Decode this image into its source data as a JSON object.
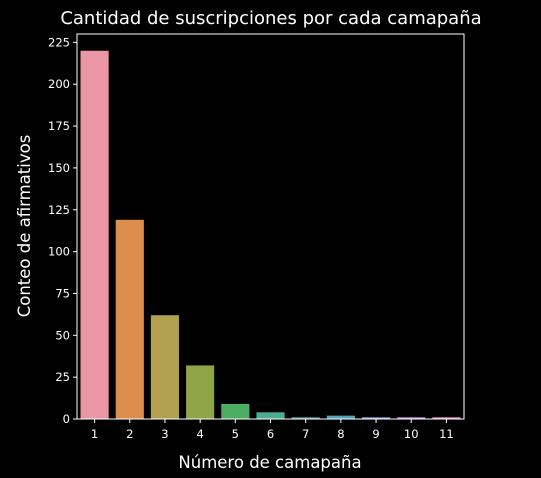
{
  "chart_data": {
    "type": "bar",
    "title": "Cantidad de suscripciones por cada camapaña",
    "xlabel": "Número de camapaña",
    "ylabel": "Conteo de afirmativos",
    "categories": [
      "1",
      "2",
      "3",
      "4",
      "5",
      "6",
      "7",
      "8",
      "9",
      "10",
      "11"
    ],
    "values": [
      220,
      119,
      62,
      32,
      9,
      4,
      1,
      2,
      1,
      1,
      1
    ],
    "colors": [
      "#ea96a3",
      "#dd8e4f",
      "#b1a14f",
      "#8ea547",
      "#4cae63",
      "#4aae95",
      "#4ca9a9",
      "#4fa6be",
      "#8ca8e3",
      "#cf96e6",
      "#e796c5"
    ],
    "ylim": [
      0,
      230
    ],
    "yticks": [
      0,
      25,
      50,
      75,
      100,
      125,
      150,
      175,
      200,
      225
    ],
    "background": "#000000",
    "axis_color": "#ffffff",
    "grid": false,
    "legend": "none"
  }
}
